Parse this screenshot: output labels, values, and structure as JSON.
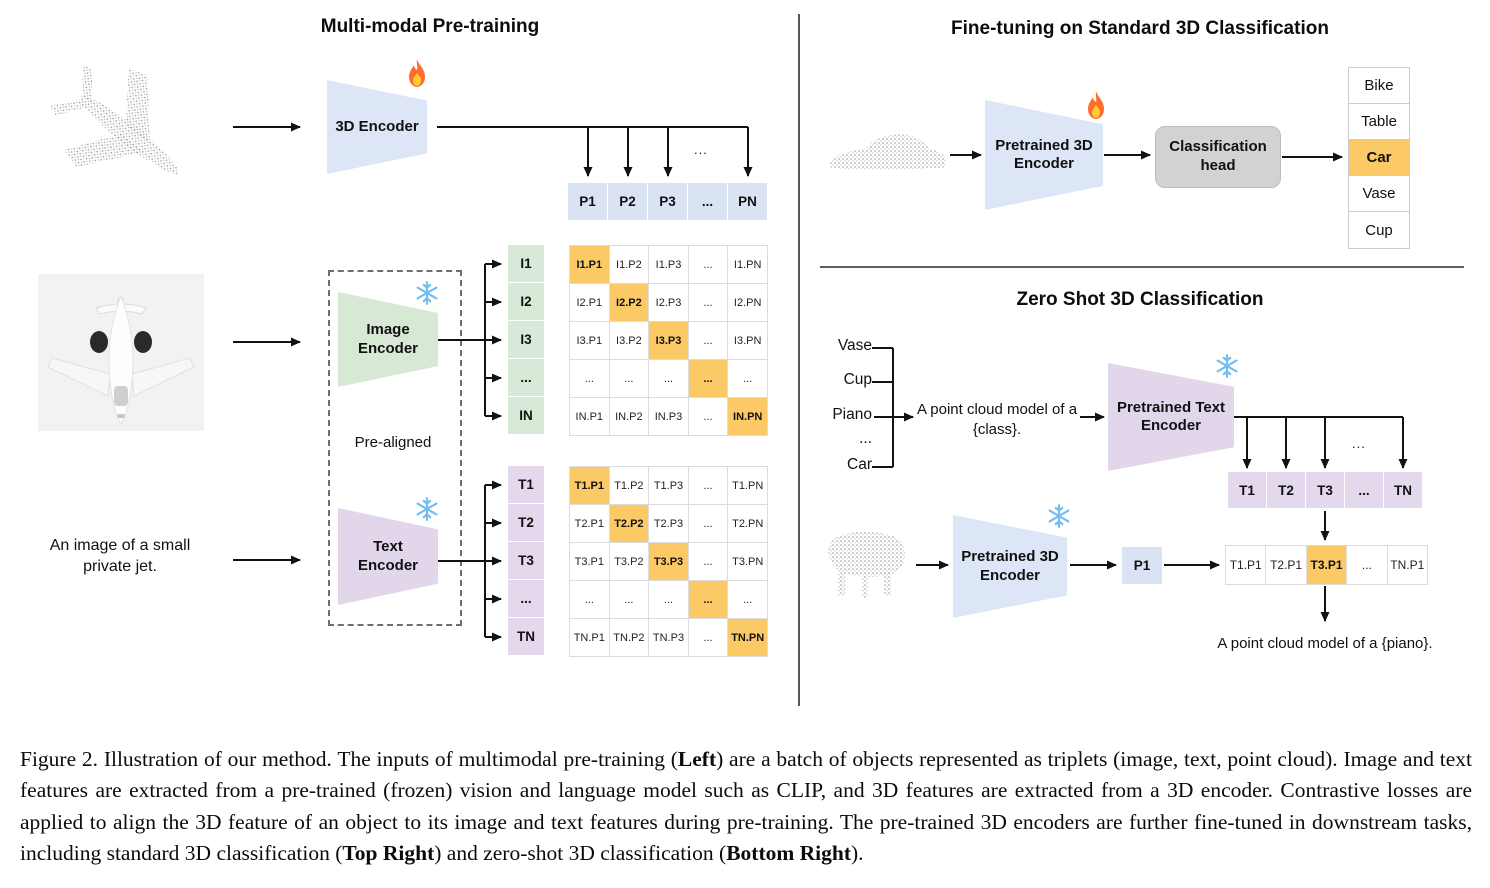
{
  "pretraining": {
    "title": "Multi-modal Pre-training",
    "input_caption": "An image of a small private jet.",
    "encoder_3d_label": "3D Encoder",
    "image_encoder_label": "Image Encoder",
    "text_encoder_label": "Text Encoder",
    "pre_aligned_label": "Pre-aligned",
    "ellipsis": "...",
    "p_row": {
      "cells": [
        "P1",
        "P2",
        "P3",
        "...",
        "PN"
      ]
    },
    "image_features": [
      "I1",
      "I2",
      "I3",
      "...",
      "IN"
    ],
    "text_features": [
      "T1",
      "T2",
      "T3",
      "...",
      "TN"
    ],
    "image_point_matrix": {
      "highlighted": "diagonal",
      "rows": [
        [
          "I1.P1",
          "I1.P2",
          "I1.P3",
          "...",
          "I1.PN"
        ],
        [
          "I2.P1",
          "I2.P2",
          "I2.P3",
          "...",
          "I2.PN"
        ],
        [
          "I3.P1",
          "I3.P2",
          "I3.P3",
          "...",
          "I3.PN"
        ],
        [
          "...",
          "...",
          "...",
          "...",
          "..."
        ],
        [
          "IN.P1",
          "IN.P2",
          "IN.P3",
          "...",
          "IN.PN"
        ]
      ]
    },
    "text_point_matrix": {
      "highlighted": "diagonal",
      "rows": [
        [
          "T1.P1",
          "T1.P2",
          "T1.P3",
          "...",
          "T1.PN"
        ],
        [
          "T2.P1",
          "T2.P2",
          "T2.P3",
          "...",
          "T2.PN"
        ],
        [
          "T3.P1",
          "T3.P2",
          "T3.P3",
          "...",
          "T3.PN"
        ],
        [
          "...",
          "...",
          "...",
          "...",
          "..."
        ],
        [
          "TN.P1",
          "TN.P2",
          "TN.P3",
          "...",
          "TN.PN"
        ]
      ]
    }
  },
  "finetuning": {
    "title": "Fine-tuning on Standard 3D Classification",
    "encoder_label": "Pretrained 3D Encoder",
    "head_label": "Classification head",
    "classes": [
      "Bike",
      "Table",
      "Car",
      "Vase",
      "Cup"
    ],
    "predicted_class": "Car"
  },
  "zeroshot": {
    "title": "Zero Shot 3D Classification",
    "candidate_classes": [
      "Vase",
      "Cup",
      "Piano",
      "...",
      "Car"
    ],
    "prompt_template": "A point cloud model of a {class}.",
    "text_encoder_label": "Pretrained Text Encoder",
    "encoder_label": "Pretrained 3D Encoder",
    "point_feature": "P1",
    "text_features": [
      "T1",
      "T2",
      "T3",
      "...",
      "TN"
    ],
    "ellipsis": "...",
    "similarities": [
      "T1.P1",
      "T2.P1",
      "T3.P1",
      "...",
      "TN.P1"
    ],
    "predicted_similarity": "T3.P1",
    "result_text": "A point cloud model of a {piano}."
  },
  "caption": {
    "segments": [
      {
        "text": "Figure 2. Illustration of our method. The inputs of multimodal pre-training (",
        "bold": false
      },
      {
        "text": "Left",
        "bold": true
      },
      {
        "text": ") are a batch of objects represented as triplets (image, text, point cloud). Image and text features are extracted from a pre-trained (frozen) vision and language model such as CLIP, and 3D features are extracted from a 3D encoder. Contrastive losses are applied to align the 3D feature of an object to its image and text features during pre-training. The pre-trained 3D encoders are further fine-tuned in downstream tasks, including standard 3D classification (",
        "bold": false
      },
      {
        "text": "Top Right",
        "bold": true
      },
      {
        "text": ") and zero-shot 3D classification (",
        "bold": false
      },
      {
        "text": "Bottom Right",
        "bold": true
      },
      {
        "text": ").",
        "bold": false
      }
    ]
  },
  "colors": {
    "encoder_blue": "#dce6f6",
    "encoder_green": "#d7e8d5",
    "encoder_purple": "#e2d6eb",
    "cell_blue": "#dae3f3",
    "cell_green": "#d9e9d8",
    "cell_purple": "#e3d8ec",
    "highlight_orange": "#fbca66",
    "head_gray": "#d2d2d2"
  }
}
